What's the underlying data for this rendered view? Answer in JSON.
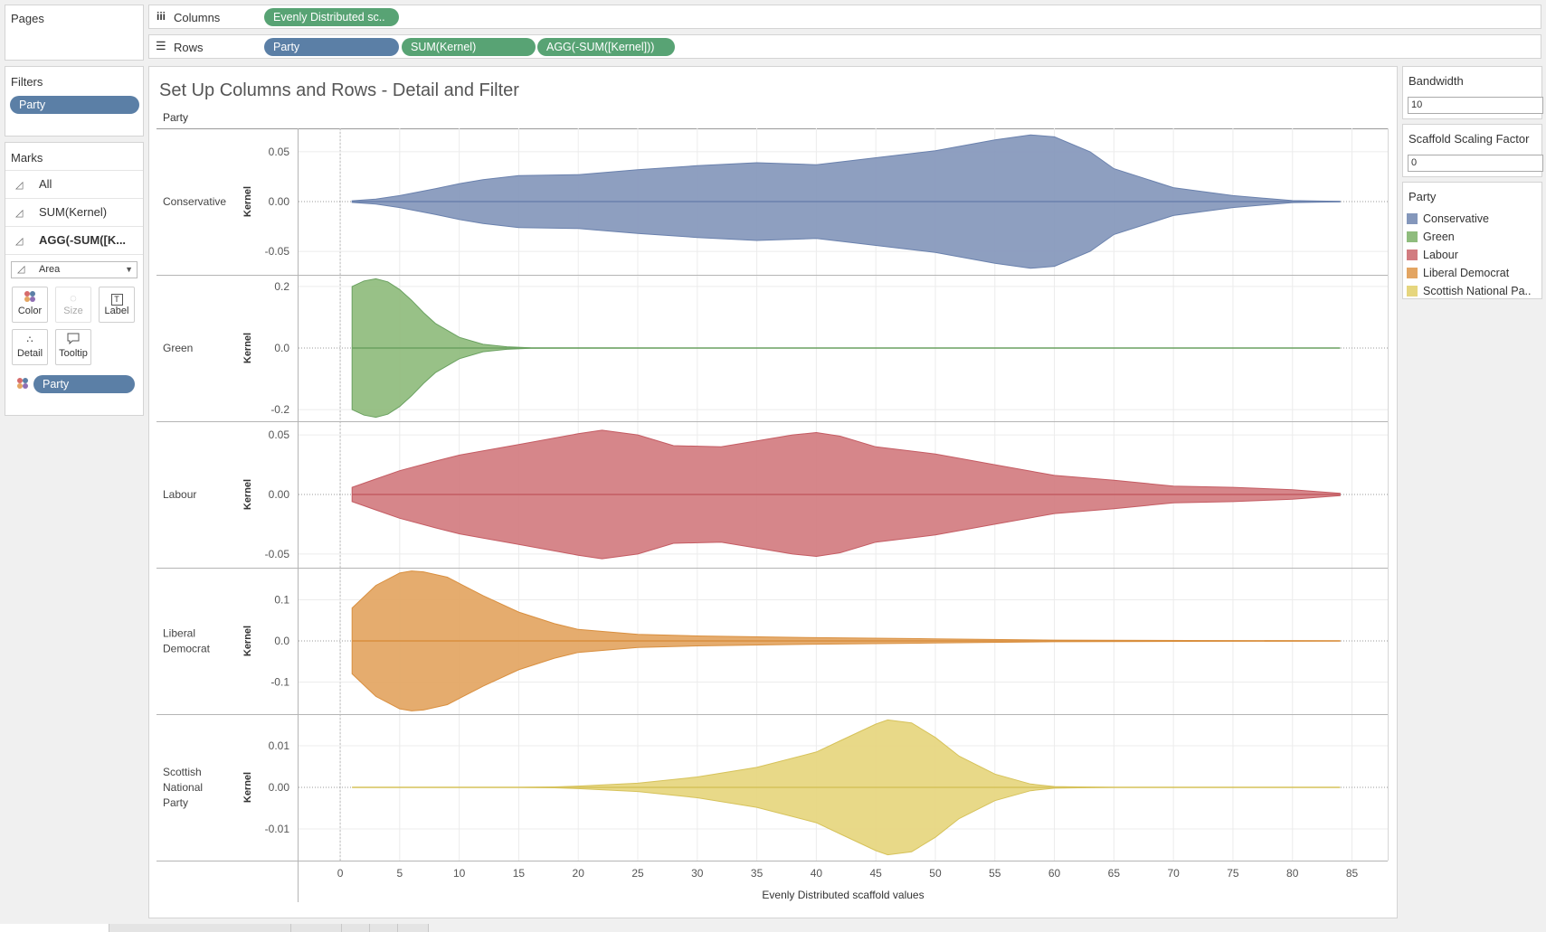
{
  "pages": {
    "label": "Pages"
  },
  "filters": {
    "label": "Filters",
    "pill": "Party"
  },
  "marks": {
    "label": "Marks",
    "layers": [
      "All",
      "SUM(Kernel)",
      "AGG(-SUM([K..."
    ],
    "mark_type": "Area",
    "buttons": [
      {
        "label": "Color",
        "icon": "color-icon"
      },
      {
        "label": "Size",
        "icon": "size-icon"
      },
      {
        "label": "Label",
        "icon": "label-icon"
      },
      {
        "label": "Detail",
        "icon": "detail-icon"
      },
      {
        "label": "Tooltip",
        "icon": "tooltip-icon"
      }
    ],
    "color_pill": "Party"
  },
  "columns": {
    "label": "Columns",
    "pills": [
      "Evenly Distributed sc.."
    ]
  },
  "rows": {
    "label": "Rows",
    "pills": [
      "Party",
      "SUM(Kernel)",
      "AGG(-SUM([Kernel]))"
    ]
  },
  "params": [
    {
      "label": "Bandwidth",
      "value": "10"
    },
    {
      "label": "Scaffold Scaling Factor",
      "value": "0"
    }
  ],
  "legend": {
    "title": "Party",
    "items": [
      "Conservative",
      "Green",
      "Labour",
      "Liberal Democrat",
      "Scottish National Pa.."
    ]
  },
  "colors": {
    "Conservative": "#8497bb",
    "Green": "#8fbc7d",
    "Labour": "#d27c80",
    "Liberal Democrat": "#e3a562",
    "Scottish National Pa..": "#e6d67e"
  },
  "line_colors": {
    "Conservative": "#6a81ad",
    "Green": "#6aa160",
    "Labour": "#c45c63",
    "Liberal Democrat": "#d98f3f",
    "Scottish National Pa..": "#d6c25a"
  },
  "chart_data": {
    "type": "area",
    "title": "Set Up Columns and Rows - Detail and Filter",
    "row_header": "Party",
    "xlabel": "Evenly Distributed scaffold values",
    "ylabel": "Kernel",
    "xlim": [
      -3.5,
      88
    ],
    "x_ticks": [
      0,
      5,
      10,
      15,
      20,
      25,
      30,
      35,
      40,
      45,
      50,
      55,
      60,
      65,
      70,
      75,
      80,
      85
    ],
    "panes": [
      {
        "party": "Conservative",
        "row_label": [
          "Conservative"
        ],
        "ylim": [
          -0.072,
          0.075
        ],
        "yticks": [
          0.05,
          0.0,
          -0.05
        ],
        "ytick_labels": [
          "0.05",
          "0.00",
          "-0.05"
        ],
        "x": [
          1,
          3,
          5,
          8,
          10,
          12,
          15,
          20,
          25,
          30,
          35,
          40,
          45,
          50,
          55,
          58,
          60,
          63,
          65,
          70,
          75,
          80,
          84
        ],
        "y": [
          0.0008,
          0.0025,
          0.006,
          0.013,
          0.018,
          0.022,
          0.026,
          0.027,
          0.032,
          0.036,
          0.039,
          0.037,
          0.044,
          0.051,
          0.062,
          0.067,
          0.065,
          0.05,
          0.033,
          0.014,
          0.006,
          0.001,
          0.0002
        ]
      },
      {
        "party": "Green",
        "row_label": [
          "Green"
        ],
        "ylim": [
          -0.238,
          0.238
        ],
        "yticks": [
          0.2,
          0.0,
          -0.2
        ],
        "ytick_labels": [
          "0.2",
          "0.0",
          "-0.2"
        ],
        "x": [
          1,
          2,
          3,
          4,
          5,
          6,
          7,
          8,
          10,
          12,
          14,
          16,
          20,
          30,
          84
        ],
        "y": [
          0.2,
          0.218,
          0.225,
          0.215,
          0.19,
          0.155,
          0.115,
          0.08,
          0.035,
          0.012,
          0.004,
          0.001,
          0.0003,
          0.0001,
          0.0
        ]
      },
      {
        "party": "Labour",
        "row_label": [
          "Labour"
        ],
        "ylim": [
          -0.0635,
          0.0595
        ],
        "yticks": [
          0.05,
          0.0,
          -0.05
        ],
        "ytick_labels": [
          "0.05",
          "0.00",
          "-0.05"
        ],
        "x": [
          1,
          3,
          5,
          8,
          10,
          15,
          20,
          22,
          25,
          28,
          32,
          35,
          38,
          40,
          42,
          45,
          50,
          55,
          60,
          65,
          70,
          75,
          80,
          84
        ],
        "y": [
          0.006,
          0.013,
          0.02,
          0.028,
          0.033,
          0.042,
          0.051,
          0.054,
          0.05,
          0.041,
          0.04,
          0.045,
          0.05,
          0.052,
          0.049,
          0.04,
          0.034,
          0.025,
          0.016,
          0.012,
          0.007,
          0.006,
          0.004,
          0.001
        ]
      },
      {
        "party": "Liberal Democrat",
        "row_label": [
          "Liberal",
          "Democrat"
        ],
        "ylim": [
          -0.178,
          0.178
        ],
        "yticks": [
          0.1,
          0.0,
          -0.1
        ],
        "ytick_labels": [
          "0.1",
          "0.0",
          "-0.1"
        ],
        "x": [
          1,
          3,
          5,
          6,
          7,
          9,
          10,
          12,
          15,
          18,
          20,
          25,
          30,
          40,
          50,
          60,
          84
        ],
        "y": [
          0.08,
          0.135,
          0.165,
          0.17,
          0.168,
          0.155,
          0.14,
          0.11,
          0.07,
          0.042,
          0.028,
          0.016,
          0.012,
          0.008,
          0.005,
          0.002,
          0.0002
        ]
      },
      {
        "party": "Scottish National Pa..",
        "row_label": [
          "Scottish",
          "National",
          "Party"
        ],
        "ylim": [
          -0.0176,
          0.0176
        ],
        "yticks": [
          0.01,
          0.0,
          -0.01
        ],
        "ytick_labels": [
          "0.01",
          "0.00",
          "-0.01"
        ],
        "x": [
          1,
          15,
          18,
          20,
          25,
          30,
          35,
          40,
          42,
          45,
          46,
          48,
          50,
          52,
          55,
          58,
          60,
          62,
          65,
          84
        ],
        "y": [
          0.0,
          0.0,
          0.0001,
          0.0003,
          0.001,
          0.0025,
          0.0048,
          0.0085,
          0.0112,
          0.0152,
          0.0162,
          0.0155,
          0.012,
          0.0075,
          0.0032,
          0.0008,
          0.0002,
          0.0001,
          0.0,
          0.0
        ]
      }
    ]
  }
}
